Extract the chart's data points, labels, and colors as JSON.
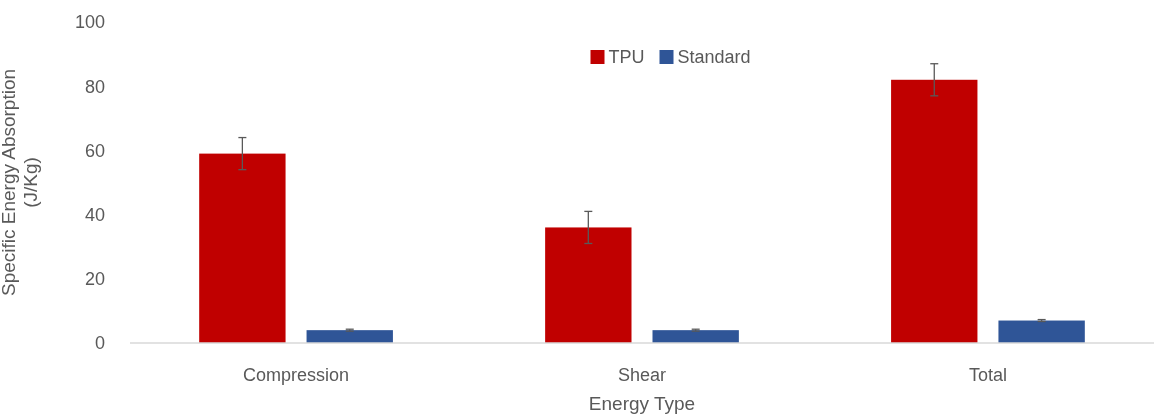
{
  "chart_data": {
    "type": "bar",
    "xlabel": "Energy Type",
    "ylabel": "Specific Energy Absorption\n(J/Kg)",
    "categories": [
      "Compression",
      "Shear",
      "Total"
    ],
    "series": [
      {
        "name": "TPU",
        "color": "#c00000",
        "values": [
          59,
          36,
          82
        ],
        "errors": [
          5,
          5,
          5
        ]
      },
      {
        "name": "Standard",
        "color": "#2f5597",
        "values": [
          4,
          4,
          7
        ],
        "errors": [
          0.3,
          0.3,
          0.3
        ]
      }
    ],
    "ylim": [
      0,
      100
    ],
    "yticks": [
      0,
      20,
      40,
      60,
      80,
      100
    ],
    "grid": false,
    "legend": "top"
  }
}
